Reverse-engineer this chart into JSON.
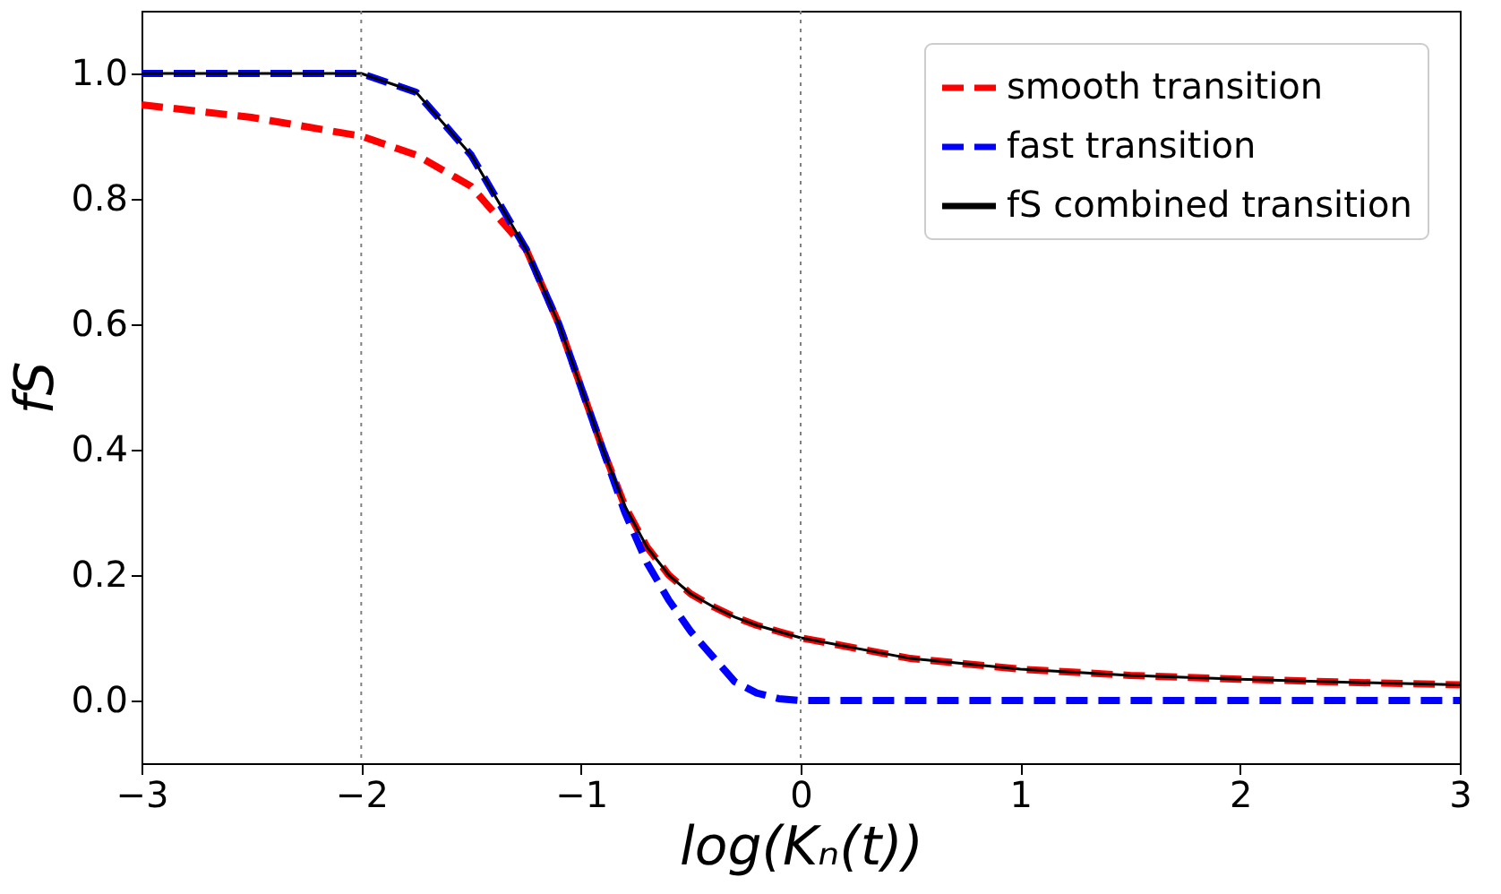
{
  "chart_data": {
    "type": "line",
    "xlabel": "log(Kₙ(t))",
    "ylabel": "fS",
    "xlim": [
      -3,
      3
    ],
    "xticks": [
      {
        "value": -3,
        "label": "−3"
      },
      {
        "value": -2,
        "label": "−2"
      },
      {
        "value": -1,
        "label": "−1"
      },
      0,
      1,
      2,
      3
    ],
    "ylim": [
      -0.1,
      1.1
    ],
    "yticks": [
      {
        "value": 0,
        "label": "0.0"
      },
      0.2,
      0.4,
      0.6,
      0.8,
      {
        "value": 1,
        "label": "1.0"
      }
    ],
    "grid": false,
    "legend": "top right",
    "x": [
      -3,
      -2.5,
      -2,
      -1.75,
      -1.5,
      -1.25,
      -1.1,
      -1,
      -0.9,
      -0.8,
      -0.7,
      -0.6,
      -0.5,
      -0.4,
      -0.3,
      -0.2,
      -0.1,
      0,
      0.5,
      1,
      1.5,
      2,
      2.5,
      3
    ],
    "series": [
      {
        "name": "smooth transition",
        "color": "#ff0000",
        "line_style": "dashed",
        "values": [
          0.95,
          0.93,
          0.9,
          0.87,
          0.82,
          0.72,
          0.6,
          0.5,
          0.4,
          0.31,
          0.245,
          0.2,
          0.17,
          0.15,
          0.133,
          0.12,
          0.11,
          0.1,
          0.067,
          0.05,
          0.04,
          0.034,
          0.029,
          0.025
        ]
      },
      {
        "name": "fast transition",
        "color": "#0000ff",
        "line_style": "dashed",
        "values": [
          1,
          1,
          1,
          0.97,
          0.87,
          0.72,
          0.6,
          0.5,
          0.4,
          0.3,
          0.22,
          0.16,
          0.11,
          0.07,
          0.03,
          0.012,
          0.003,
          0,
          0,
          0,
          0,
          0,
          0,
          0
        ]
      },
      {
        "name": "fS combined transition",
        "color": "#000000",
        "line_style": "solid",
        "values": [
          1,
          1,
          1,
          0.97,
          0.87,
          0.72,
          0.6,
          0.5,
          0.4,
          0.31,
          0.245,
          0.2,
          0.17,
          0.15,
          0.133,
          0.12,
          0.11,
          0.1,
          0.067,
          0.05,
          0.04,
          0.034,
          0.029,
          0.025
        ]
      }
    ],
    "ref_lines": [
      {
        "axis": "x",
        "value": -2,
        "color": "#808080",
        "line_style": "dotted"
      },
      {
        "axis": "x",
        "value": 0,
        "color": "#808080",
        "line_style": "dotted"
      }
    ]
  }
}
